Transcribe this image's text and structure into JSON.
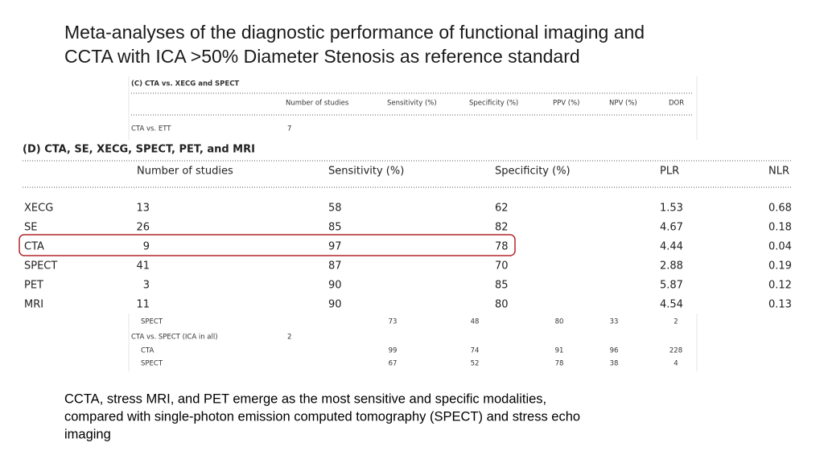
{
  "title": {
    "lines": [
      "Meta-analyses of the diagnostic performance of functional imaging and",
      "CCTA with ICA >50% Diameter Stenosis as reference standard"
    ]
  },
  "table_c": {
    "title": "(C) CTA vs. XECG and SPECT",
    "columns": [
      "Number of studies",
      "Sensitivity (%)",
      "Specificity (%)",
      "PPV (%)",
      "NPV (%)",
      "DOR"
    ],
    "rows": [
      {
        "label": "CTA vs. ETT",
        "studies": "7"
      },
      {
        "label": "SPECT",
        "values": [
          "73",
          "48",
          "80",
          "33",
          "2"
        ]
      },
      {
        "label": "CTA vs. SPECT (ICA in all)",
        "studies": "2"
      },
      {
        "label": "CTA",
        "values": [
          "99",
          "74",
          "91",
          "96",
          "228"
        ]
      },
      {
        "label": "SPECT",
        "values": [
          "67",
          "52",
          "78",
          "38",
          "4"
        ]
      }
    ]
  },
  "table_d": {
    "title": "(D) CTA, SE, XECG, SPECT, PET, and MRI",
    "columns": [
      "Number of studies",
      "Sensitivity (%)",
      "Specificity (%)",
      "PLR",
      "NLR"
    ],
    "rows": [
      [
        "XECG",
        "13",
        "58",
        "62",
        "1.53",
        "0.68"
      ],
      [
        "SE",
        "26",
        "85",
        "82",
        "4.67",
        "0.18"
      ],
      [
        "CTA",
        "9",
        "97",
        "78",
        "4.44",
        "0.04"
      ],
      [
        "SPECT",
        "41",
        "87",
        "70",
        "2.88",
        "0.19"
      ],
      [
        "PET",
        "3",
        "90",
        "85",
        "5.87",
        "0.12"
      ],
      [
        "MRI",
        "11",
        "90",
        "80",
        "4.54",
        "0.13"
      ]
    ]
  },
  "footer": {
    "lines": [
      "CCTA, stress MRI, and PET emerge as the most sensitive and specific modalities,",
      "compared with single-photon emission computed tomography (SPECT) and stress echo",
      "imaging"
    ]
  }
}
